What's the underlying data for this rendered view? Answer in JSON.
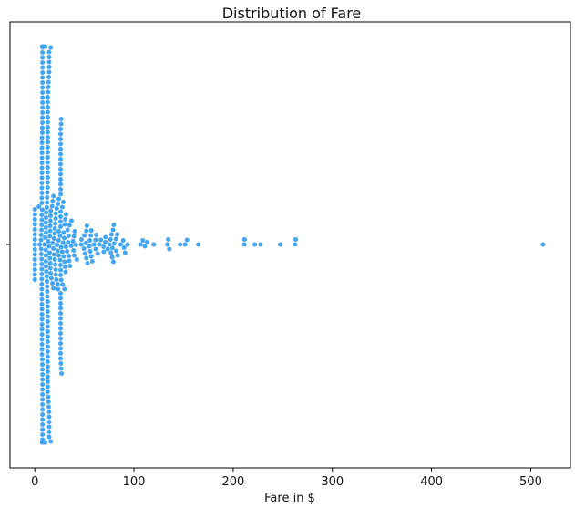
{
  "chart_data": {
    "type": "scatter",
    "subtype": "swarm",
    "title": "Distribution of Fare",
    "xlabel": "Fare in $",
    "ylabel": "",
    "xlim": [
      -25,
      540
    ],
    "xticks": [
      0,
      100,
      200,
      300,
      400,
      500
    ],
    "grid": false,
    "legend": null,
    "point_color": "#42a5f5",
    "series": [
      {
        "name": "",
        "values": [
          0,
          0,
          0,
          0,
          0,
          0,
          0,
          0,
          0,
          0,
          0,
          0,
          0,
          0,
          0,
          4.01,
          5,
          6.24,
          6.44,
          6.45,
          6.5,
          6.75,
          6.86,
          6.95,
          6.98,
          7.05,
          7.05,
          7.05,
          7.05,
          7.05,
          7.05,
          7.05,
          7.05,
          7.05,
          7.05,
          7.13,
          7.14,
          7.14,
          7.14,
          7.14,
          7.23,
          7.23,
          7.23,
          7.23,
          7.23,
          7.23,
          7.25,
          7.25,
          7.25,
          7.25,
          7.25,
          7.25,
          7.25,
          7.25,
          7.25,
          7.25,
          7.25,
          7.25,
          7.25,
          7.55,
          7.55,
          7.55,
          7.55,
          7.65,
          7.65,
          7.65,
          7.65,
          7.73,
          7.73,
          7.73,
          7.73,
          7.73,
          7.73,
          7.73,
          7.73,
          7.73,
          7.73,
          7.73,
          7.73,
          7.73,
          7.75,
          7.75,
          7.75,
          7.75,
          7.75,
          7.75,
          7.75,
          7.75,
          7.75,
          7.75,
          7.75,
          7.75,
          7.75,
          7.75,
          7.75,
          7.75,
          7.75,
          7.75,
          7.75,
          7.75,
          7.75,
          7.75,
          7.75,
          7.75,
          7.75,
          7.75,
          7.78,
          7.78,
          7.78,
          7.78,
          7.79,
          7.8,
          7.8,
          7.8,
          7.8,
          7.85,
          7.85,
          7.85,
          7.85,
          7.85,
          7.85,
          7.85,
          7.85,
          7.85,
          7.85,
          7.85,
          7.85,
          7.85,
          7.88,
          7.88,
          7.88,
          7.88,
          7.9,
          7.9,
          7.9,
          7.9,
          7.9,
          7.9,
          7.9,
          7.9,
          7.9,
          7.9,
          7.9,
          7.9,
          7.9,
          7.9,
          7.9,
          7.9,
          7.9,
          7.9,
          7.9,
          7.9,
          7.9,
          7.9,
          7.9,
          7.9,
          7.9,
          7.9,
          7.9,
          7.9,
          7.9,
          7.9,
          7.9,
          7.9,
          7.9,
          7.9,
          7.9,
          7.9,
          7.9,
          7.9,
          7.9,
          7.9,
          7.9,
          7.9,
          7.9,
          7.9,
          7.9,
          7.9,
          7.9,
          7.9,
          7.9,
          7.9,
          7.9,
          7.9,
          7.92,
          7.92,
          7.92,
          7.92,
          7.92,
          7.92,
          7.92,
          7.92,
          7.92,
          7.92,
          7.92,
          7.92,
          7.92,
          7.92,
          7.92,
          7.92,
          7.92,
          7.92,
          7.92,
          7.92,
          7.92,
          7.92,
          7.92,
          7.92,
          8.03,
          8.05,
          8.05,
          8.05,
          8.05,
          8.05,
          8.05,
          8.05,
          8.05,
          8.05,
          8.05,
          8.05,
          8.05,
          8.05,
          8.05,
          8.05,
          8.05,
          8.05,
          8.05,
          8.05,
          8.05,
          8.05,
          8.05,
          8.05,
          8.05,
          8.05,
          8.05,
          8.05,
          8.05,
          8.05,
          8.05,
          8.05,
          8.05,
          8.05,
          8.05,
          8.05,
          8.05,
          8.05,
          8.05,
          8.05,
          8.05,
          8.05,
          8.05,
          8.05,
          8.05,
          8.05,
          8.05,
          8.05,
          8.05,
          8.05,
          8.05,
          8.05,
          8.11,
          8.14,
          8.16,
          8.16,
          8.3,
          8.43,
          8.52,
          8.66,
          8.66,
          8.66,
          8.66,
          8.66,
          8.66,
          8.66,
          8.66,
          8.66,
          8.66,
          8.66,
          8.66,
          8.66,
          9,
          9.22,
          9.35,
          9.48,
          9.5,
          9.5,
          9.59,
          9.59,
          9.84,
          9.84,
          9.84,
          10.5,
          10.5,
          10.5,
          10.5,
          10.5,
          10.5,
          10.5,
          10.5,
          10.5,
          10.5,
          10.5,
          10.5,
          10.5,
          11.13,
          11.13,
          11.13,
          11.13,
          11.13,
          11.13,
          11.24,
          11.24,
          11.5,
          11.5,
          12,
          12,
          12.28,
          12.29,
          12.35,
          12.35,
          12.48,
          12.52,
          12.65,
          12.88,
          13,
          13,
          13,
          13,
          13,
          13,
          13,
          13,
          13,
          13,
          13,
          13,
          13,
          13,
          13,
          13,
          13,
          13,
          13,
          13,
          13,
          13,
          13,
          13,
          13,
          13,
          13,
          13,
          13,
          13,
          13,
          13,
          13,
          13,
          13,
          13,
          13,
          13.42,
          13.5,
          13.5,
          13.5,
          13.79,
          13.86,
          14,
          14.11,
          14.45,
          14.45,
          14.46,
          14.46,
          14.46,
          14.5,
          14.5,
          14.5,
          14.5,
          14.5,
          14.5,
          14.5,
          15,
          15.05,
          15.25,
          15.5,
          15.5,
          15.55,
          15.74,
          15.75,
          15.85,
          15.9,
          16,
          16.1,
          16.1,
          16.7,
          17.4,
          17.8,
          18,
          18,
          18.75,
          18.75,
          18.79,
          19.26,
          19.5,
          19.97,
          20.21,
          20.25,
          20.52,
          20.58,
          21,
          21,
          21.08,
          21.08,
          21.68,
          22.02,
          22.36,
          23,
          23,
          23.25,
          23.45,
          24,
          24.15,
          24.15,
          24.15,
          25.47,
          25.59,
          25.93,
          26,
          26,
          26,
          26,
          26,
          26,
          26,
          26,
          26,
          26,
          26,
          26,
          26,
          26,
          26,
          26,
          26,
          26,
          26,
          26,
          26,
          26,
          26,
          26,
          26,
          26,
          26,
          26,
          26,
          26,
          26,
          26,
          26,
          26,
          26.25,
          26.55,
          26.55,
          26.55,
          26.55,
          26.55,
          27,
          27.72,
          27.75,
          27.9,
          28.5,
          28.71,
          29,
          29.13,
          29.7,
          30,
          30,
          30.07,
          30.5,
          30.7,
          31,
          31.27,
          31.39,
          32.5,
          33,
          33.5,
          34.02,
          34.38,
          34.65,
          35,
          35.5,
          36.75,
          37,
          38.5,
          39,
          39.4,
          39.69,
          40.13,
          41.58,
          42.4,
          46.9,
          47.1,
          49.5,
          50,
          50.5,
          51.48,
          51.86,
          52,
          52.55,
          53.1,
          55,
          55.44,
          55.9,
          56.5,
          56.93,
          57,
          57.98,
          59.4,
          61.18,
          61.38,
          61.98,
          63.36,
          65,
          66.6,
          69.3,
          69.55,
          71,
          71.28,
          73.5,
          75.25,
          76.29,
          76.73,
          77.29,
          77.96,
          78.27,
          78.85,
          79.2,
          79.65,
          80,
          81.86,
          82.17,
          83.16,
          83.48,
          86.5,
          89.1,
          90,
          91.08,
          93.5,
          106.43,
          108.9,
          110.88,
          113.28,
          120,
          133.65,
          134.5,
          135.63,
          146.52,
          151.55,
          153.46,
          164.87,
          211.34,
          211.5,
          221.78,
          227.53,
          247.52,
          262.38,
          263,
          512.33
        ]
      }
    ]
  }
}
